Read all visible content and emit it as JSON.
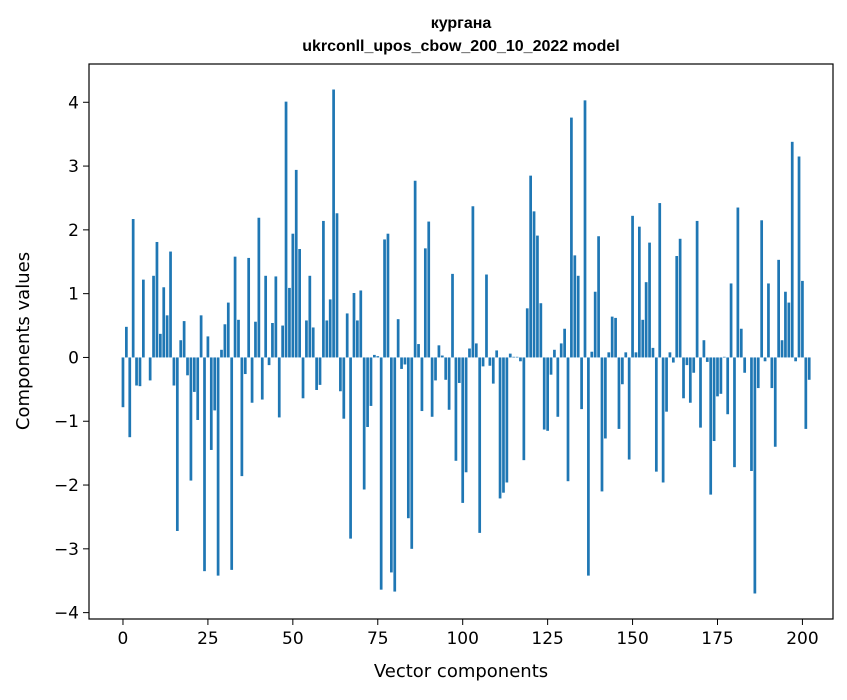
{
  "chart_data": {
    "type": "bar",
    "title_line1": "кургана",
    "title_line2": "ukrconll_upos_cbow_200_10_2022 model",
    "xlabel": "Vector components",
    "ylabel": "Components values",
    "xlim": [
      -10,
      209
    ],
    "ylim": [
      -4.1,
      4.6
    ],
    "xticks": [
      0,
      25,
      50,
      75,
      100,
      125,
      150,
      175,
      200
    ],
    "xtick_labels": [
      "0",
      "25",
      "50",
      "75",
      "100",
      "125",
      "150",
      "175",
      "200"
    ],
    "yticks": [
      -4,
      -3,
      -2,
      -1,
      0,
      1,
      2,
      3,
      4
    ],
    "ytick_labels": [
      "−4",
      "−3",
      "−2",
      "−1",
      "0",
      "1",
      "2",
      "3",
      "4"
    ],
    "bar_color": "#1f77b4",
    "values": [
      -0.78,
      0.48,
      -1.25,
      2.17,
      -0.44,
      -0.45,
      1.22,
      0.0,
      -0.36,
      1.28,
      1.81,
      0.37,
      1.1,
      0.66,
      1.66,
      -0.44,
      -2.72,
      0.27,
      0.57,
      -0.28,
      -1.93,
      -0.54,
      -0.98,
      0.66,
      -3.35,
      0.33,
      -1.45,
      -0.83,
      -3.42,
      0.12,
      0.52,
      0.86,
      -3.33,
      1.58,
      0.59,
      -1.86,
      -0.26,
      1.56,
      -0.71,
      0.56,
      2.19,
      -0.66,
      1.28,
      -0.12,
      0.54,
      1.27,
      -0.94,
      0.5,
      4.01,
      1.09,
      1.94,
      2.94,
      1.7,
      -0.64,
      0.58,
      1.28,
      0.47,
      -0.51,
      -0.43,
      2.14,
      0.58,
      0.91,
      4.2,
      2.26,
      -0.53,
      -0.96,
      0.69,
      -2.84,
      1.01,
      0.58,
      1.05,
      -2.07,
      -1.09,
      -0.76,
      0.04,
      0.02,
      -3.64,
      1.85,
      1.94,
      -3.37,
      -3.67,
      0.6,
      -0.18,
      -0.11,
      -2.52,
      -3.0,
      2.77,
      0.21,
      -0.84,
      1.71,
      2.13,
      -0.93,
      -0.36,
      0.19,
      0.03,
      -0.35,
      -0.82,
      1.31,
      -1.62,
      -0.4,
      -2.28,
      -1.8,
      0.14,
      2.37,
      0.22,
      -2.75,
      -0.14,
      1.3,
      -0.13,
      -0.41,
      0.11,
      -2.21,
      -2.12,
      -1.96,
      0.06,
      0.01,
      0.01,
      -0.06,
      -1.61,
      0.77,
      2.85,
      2.29,
      1.91,
      0.85,
      -1.13,
      -1.15,
      -0.27,
      0.12,
      -0.93,
      0.22,
      0.45,
      -1.94,
      3.76,
      1.6,
      1.28,
      -0.81,
      4.03,
      -3.42,
      0.09,
      1.03,
      1.9,
      -2.1,
      -1.27,
      0.08,
      0.64,
      0.62,
      -1.12,
      -0.42,
      0.08,
      -1.6,
      2.22,
      0.08,
      2.05,
      0.59,
      1.18,
      1.8,
      0.15,
      -1.79,
      2.42,
      -1.96,
      -0.85,
      0.08,
      -0.08,
      1.59,
      1.86,
      -0.64,
      -0.12,
      -0.71,
      -0.24,
      2.14,
      -1.1,
      0.27,
      -0.07,
      -2.15,
      -1.31,
      -0.61,
      -0.57,
      0.01,
      -0.89,
      1.16,
      -1.72,
      2.35,
      0.45,
      -0.24,
      0.0,
      -1.78,
      -3.7,
      -0.48,
      2.15,
      -0.06,
      1.16,
      -0.48,
      -1.4,
      1.53,
      0.27,
      1.03,
      0.86,
      3.38,
      -0.06,
      3.15,
      1.2,
      -1.12,
      -0.35
    ]
  }
}
